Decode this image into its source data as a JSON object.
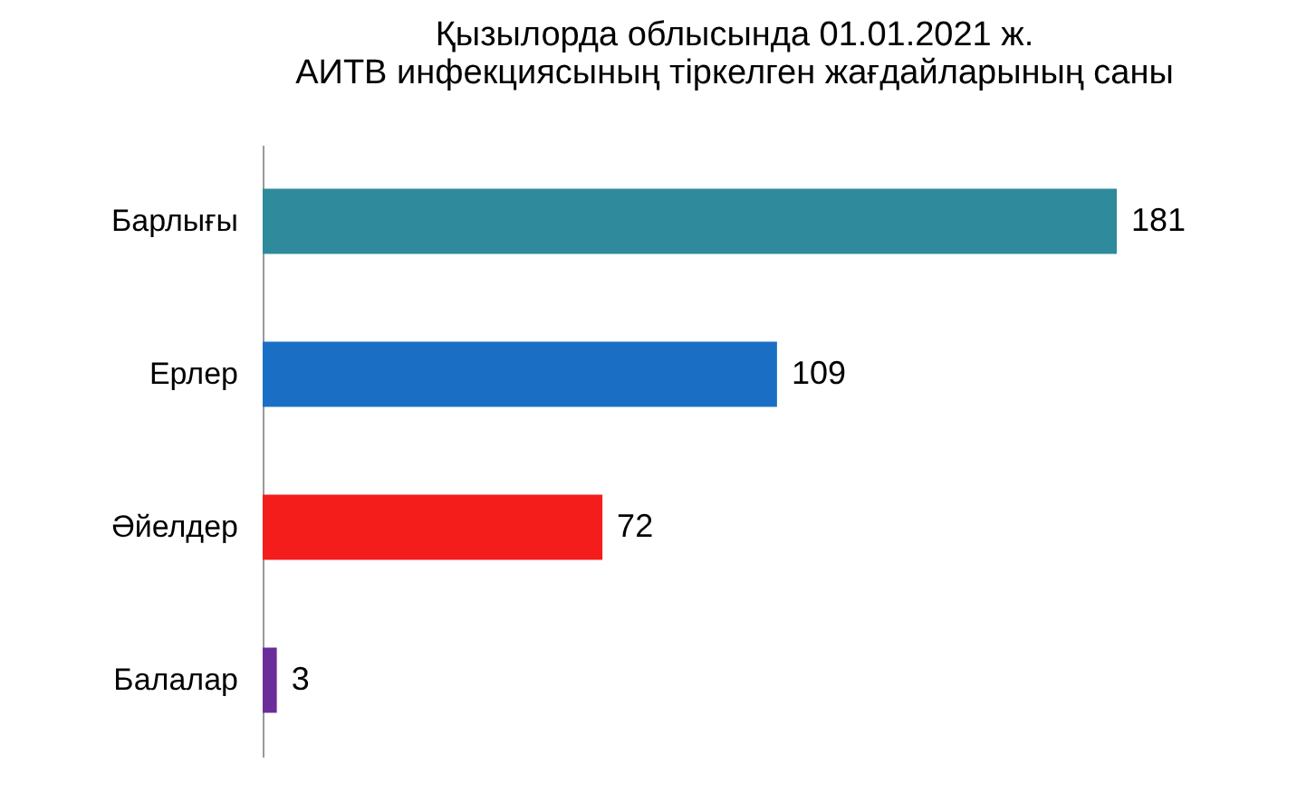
{
  "chart_data": {
    "type": "bar",
    "orientation": "horizontal",
    "title": "Қызылорда облысында 01.01.2021 ж.\nАИТВ инфекциясының тіркелген жағдайларының саны",
    "categories": [
      "Барлығы",
      "Ерлер",
      "Әйелдер",
      "Балалар"
    ],
    "values": [
      181,
      109,
      72,
      3
    ],
    "colors": [
      "#2f8a9c",
      "#1a6fc4",
      "#f51c1c",
      "#6a2d9a"
    ],
    "data_labels": true,
    "grid": false
  }
}
